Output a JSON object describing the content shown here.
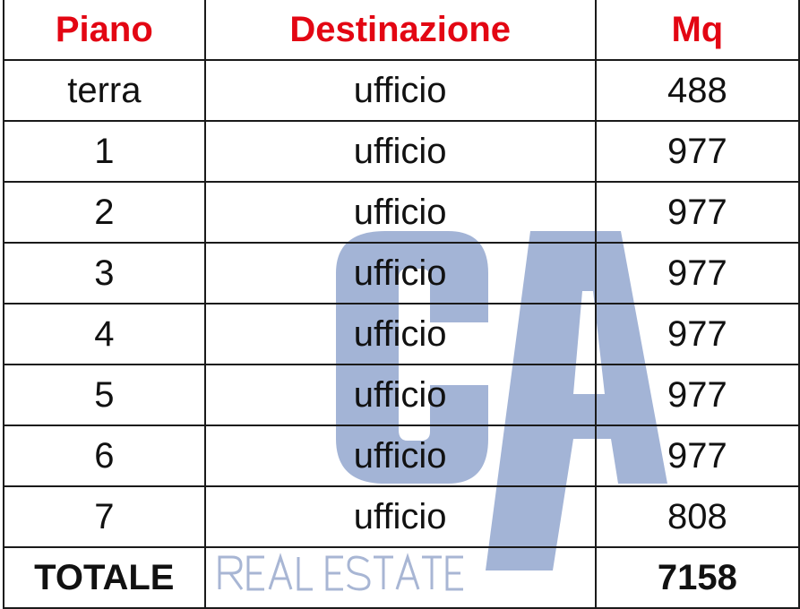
{
  "table": {
    "headers": [
      "Piano",
      "Destinazione",
      "Mq"
    ],
    "rows": [
      [
        "terra",
        "ufficio",
        "488"
      ],
      [
        "1",
        "ufficio",
        "977"
      ],
      [
        "2",
        "ufficio",
        "977"
      ],
      [
        "3",
        "ufficio",
        "977"
      ],
      [
        "4",
        "ufficio",
        "977"
      ],
      [
        "5",
        "ufficio",
        "977"
      ],
      [
        "6",
        "ufficio",
        "977"
      ],
      [
        "7",
        "ufficio",
        "808"
      ]
    ],
    "total": {
      "label": "TOTALE",
      "value": "7158"
    }
  },
  "watermark": {
    "logo": "CA",
    "tagline": "REAL ESTATE",
    "color": "#a3b4d6"
  },
  "colors": {
    "header": "#e30613",
    "text": "#111111",
    "border": "#1a1a1a"
  }
}
